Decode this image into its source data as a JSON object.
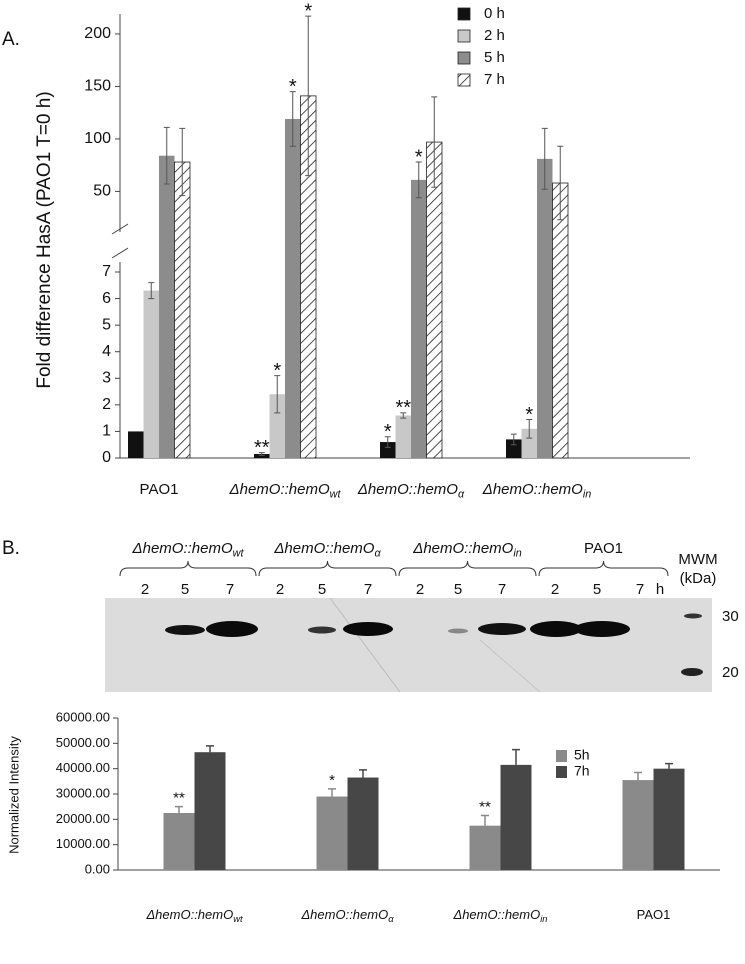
{
  "chart_data": [
    {
      "type": "broken-bar",
      "label": "A.",
      "y_label": "Fold difference HasA (PAO1 T=0 h)",
      "categories": [
        {
          "text": "PAO1"
        },
        {
          "text": "ΔhemO::hemO",
          "subscript": "wt"
        },
        {
          "text": "ΔhemO::hemO",
          "subscript": "α"
        },
        {
          "text": "ΔhemO::hemO",
          "subscript": "in"
        }
      ],
      "ylim": [
        0,
        7
      ],
      "yticks": [
        0,
        1,
        2,
        3,
        4,
        5,
        6,
        7
      ],
      "ylim_upper": [
        18,
        219
      ],
      "yticks_upper": [
        50,
        100,
        150,
        200
      ],
      "legend": "top-right",
      "series": [
        {
          "name": "0 h",
          "color": "#111111",
          "values": [
            1.0,
            0.15,
            0.6,
            0.7
          ],
          "errors": [
            0,
            0.05,
            0.2,
            0.2
          ],
          "annotations": [
            null,
            "**",
            "*",
            null
          ]
        },
        {
          "name": "2 h",
          "color": "#c8c8c8",
          "values": [
            6.3,
            2.4,
            1.6,
            1.1
          ],
          "errors": [
            0.3,
            0.7,
            0.1,
            0.35
          ],
          "annotations": [
            null,
            "*",
            "**",
            "*"
          ]
        },
        {
          "name": "5 h",
          "color": "#8c8c8c",
          "values": [
            84,
            119,
            61,
            81
          ],
          "errors": [
            27,
            26,
            17,
            29
          ],
          "annotations": [
            null,
            "*",
            "*",
            null
          ]
        },
        {
          "name": "7 h",
          "color": "#ffffff",
          "pattern": "hatch",
          "values": [
            78,
            141,
            97,
            58
          ],
          "errors": [
            32,
            76,
            43,
            35
          ],
          "annotations": [
            null,
            "*",
            null,
            null
          ]
        }
      ]
    },
    {
      "type": "bar",
      "y_label": "Normalized Intensity",
      "categories": [
        {
          "text": "ΔhemO::hemO",
          "subscript": "wt"
        },
        {
          "text": "ΔhemO::hemO",
          "subscript": "α"
        },
        {
          "text": "ΔhemO::hemO",
          "subscript": "in"
        },
        {
          "text": "PAO1"
        }
      ],
      "ylim": [
        0,
        60000
      ],
      "yticks": [
        {
          "value": 0,
          "label": "0.00"
        },
        {
          "value": 10000,
          "label": "10000.00"
        },
        {
          "value": 20000,
          "label": "20000.00"
        },
        {
          "value": 30000,
          "label": "30000.00"
        },
        {
          "value": 40000,
          "label": "40000.00"
        },
        {
          "value": 50000,
          "label": "50000.00"
        },
        {
          "value": 60000,
          "label": "60000.00"
        }
      ],
      "legend": "top-right",
      "series": [
        {
          "name": "5h",
          "color": "#8a8a8a",
          "values": [
            22500,
            29000,
            17500,
            35500
          ],
          "errors": [
            2500,
            3000,
            4000,
            3000
          ],
          "annotations": [
            "**",
            "*",
            "**",
            null
          ]
        },
        {
          "name": "7h",
          "color": "#474747",
          "values": [
            46500,
            36500,
            41500,
            40000
          ],
          "errors": [
            2500,
            3000,
            6000,
            2000
          ],
          "annotations": [
            null,
            null,
            null,
            null
          ]
        }
      ]
    }
  ],
  "blot": {
    "label": "B.",
    "strains": [
      {
        "text": "ΔhemO::hemO",
        "subscript": "wt"
      },
      {
        "text": "ΔhemO::hemO",
        "subscript": "α"
      },
      {
        "text": "ΔhemO::hemO",
        "subscript": "in"
      },
      {
        "text": "PAO1"
      }
    ],
    "lanes": [
      "2",
      "5",
      "7"
    ],
    "unit": "h",
    "marker": {
      "title": "MWM",
      "unit": "(kDa)",
      "sizes": [
        "30",
        "20"
      ]
    }
  }
}
